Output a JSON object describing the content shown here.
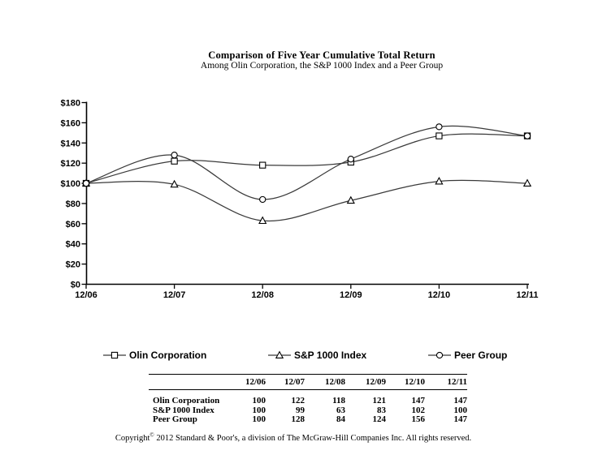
{
  "title": "Comparison of Five Year Cumulative Total Return",
  "subtitle": "Among Olin Corporation, the S&P 1000 Index and a Peer Group",
  "chart_data": {
    "type": "line",
    "smooth": true,
    "grid": false,
    "legend_position": "bottom",
    "background_color": "#ffffff",
    "axis_color": "#000000",
    "line_color": "#3a3a3a",
    "marker_fill": "#ffffff",
    "x_categories": [
      "12/06",
      "12/07",
      "12/08",
      "12/09",
      "12/10",
      "12/11"
    ],
    "series": [
      {
        "name": "Olin Corporation",
        "marker": "square",
        "values": [
          100,
          122,
          118,
          121,
          147,
          147
        ]
      },
      {
        "name": "S&P 1000 Index",
        "marker": "triangle",
        "values": [
          100,
          99,
          63,
          83,
          102,
          100
        ]
      },
      {
        "name": "Peer Group",
        "marker": "circle",
        "values": [
          100,
          128,
          84,
          124,
          156,
          147
        ]
      }
    ],
    "ylabel": "",
    "xlabel": "",
    "ylim": [
      0,
      180
    ],
    "y_tick_values": [
      180,
      160,
      140,
      120,
      100,
      80,
      60,
      40,
      20,
      0
    ],
    "y_tick_labels": [
      "$180",
      "$160",
      "$140",
      "$120",
      "$100",
      "$80",
      "$60",
      "$40",
      "$20",
      "$0"
    ]
  },
  "legend": {
    "items": [
      {
        "label": "Olin Corporation",
        "marker": "square"
      },
      {
        "label": "S&P 1000 Index",
        "marker": "triangle"
      },
      {
        "label": "Peer Group",
        "marker": "circle"
      }
    ]
  },
  "table": {
    "columns": [
      "12/06",
      "12/07",
      "12/08",
      "12/09",
      "12/10",
      "12/11"
    ],
    "rows": [
      {
        "label": "Olin Corporation",
        "values": [
          "100",
          "122",
          "118",
          "121",
          "147",
          "147"
        ]
      },
      {
        "label": "S&P 1000 Index",
        "values": [
          "100",
          "99",
          "63",
          "83",
          "102",
          "100"
        ]
      },
      {
        "label": "Peer Group",
        "values": [
          "100",
          "128",
          "84",
          "124",
          "156",
          "147"
        ]
      }
    ]
  },
  "footer": {
    "copyright_prefix": "Copyright",
    "copyright_symbol": "©",
    "copyright_rest": " 2012 Standard & Poor's, a division of The McGraw-Hill Companies Inc. All rights reserved."
  }
}
